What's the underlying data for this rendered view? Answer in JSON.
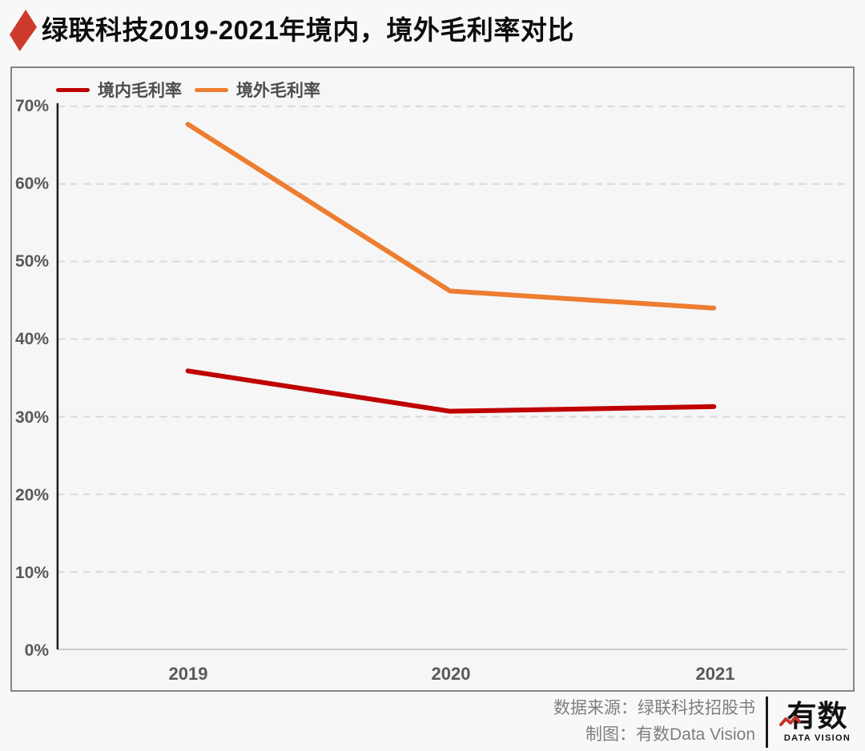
{
  "header": {
    "title": "绿联科技2019-2021年境内，境外毛利率对比"
  },
  "chart_data": {
    "type": "line",
    "title": "绿联科技2019-2021年境内，境外毛利率对比",
    "categories": [
      "2019",
      "2020",
      "2021"
    ],
    "series": [
      {
        "name": "境内毛利率",
        "values": [
          35.9,
          30.7,
          31.3
        ],
        "color": "#c00000"
      },
      {
        "name": "境外毛利率",
        "values": [
          67.7,
          46.2,
          44.0
        ],
        "color": "#ed7d31"
      }
    ],
    "xlabel": "",
    "ylabel": "",
    "ylim": [
      0,
      70
    ],
    "y_tick_labels": [
      "0%",
      "10%",
      "20%",
      "30%",
      "40%",
      "50%",
      "60%",
      "70%"
    ],
    "grid": "horizontal-dashed",
    "legend_position": "top-left"
  },
  "footer": {
    "source_line": "数据来源：绿联科技招股书",
    "credit_line": "制图：有数Data Vision",
    "logo": {
      "wordmark": "有数",
      "subtitle": "DATA VISION",
      "zigzag_icon": "line-chart-zigzag"
    }
  },
  "colors": {
    "domestic_line": "#c00000",
    "overseas_line": "#ed7d31",
    "title_marker": "#cd3a2c",
    "grid": "#d9d9d9",
    "axis": "#1a1a1a",
    "tick_text": "#595959",
    "legend_text": "#4d4d4d",
    "footer_text": "#7f7f7f",
    "logo_accent": "#c2342c"
  }
}
